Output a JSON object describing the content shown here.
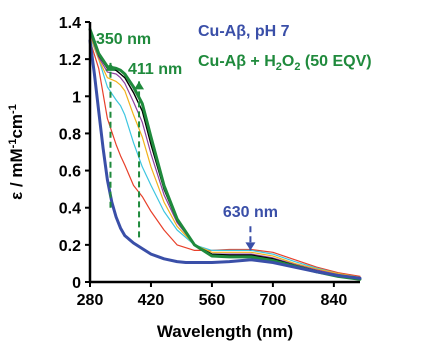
{
  "chart_data": {
    "type": "line",
    "xlabel": "Wavelength (nm)",
    "ylabel_main": "ε / mM",
    "ylabel_sup1": "-1",
    "ylabel_mid": "cm",
    "ylabel_sup2": "-1",
    "xlim": [
      280,
      900
    ],
    "ylim": [
      0,
      1.4
    ],
    "xticks": [
      "280",
      "420",
      "560",
      "700",
      "840"
    ],
    "yticks": [
      "0",
      "0.2",
      "0.4",
      "0.6",
      "0.8",
      "1",
      "1.2",
      "1.4"
    ],
    "legend": {
      "entry1": {
        "text": "Cu-Aβ, pH 7",
        "color": "#3a4fa8"
      },
      "entry2_a": "Cu-Aβ + H",
      "entry2_sub": "2",
      "entry2_b": "O",
      "entry2_sub2": "2",
      "entry2_c": " (50 EQV)",
      "entry2_color": "#1f8a3c"
    },
    "annotations": [
      {
        "text": "350 nm",
        "x": 350,
        "color": "#1f8a3c"
      },
      {
        "text": "411 nm",
        "x": 411,
        "color": "#1f8a3c"
      },
      {
        "text": "630 nm",
        "x": 630,
        "color": "#3a4fa8"
      }
    ],
    "series": [
      {
        "role": "initial",
        "color": "#3a4fa8",
        "width": 3,
        "x": [
          280,
          290,
          300,
          310,
          320,
          330,
          340,
          350,
          360,
          380,
          400,
          420,
          450,
          480,
          500,
          530,
          560,
          600,
          650,
          700,
          750,
          800,
          850,
          900
        ],
        "y": [
          1.3,
          1.12,
          0.92,
          0.72,
          0.55,
          0.43,
          0.35,
          0.29,
          0.25,
          0.21,
          0.18,
          0.15,
          0.125,
          0.11,
          0.105,
          0.105,
          0.105,
          0.11,
          0.12,
          0.105,
          0.08,
          0.055,
          0.035,
          0.02
        ]
      },
      {
        "role": "intermediate",
        "color": "#e8402a",
        "width": 1.2,
        "x": [
          280,
          300,
          320,
          340,
          350,
          360,
          380,
          400,
          420,
          450,
          480,
          520,
          560,
          600,
          650,
          700,
          750,
          800,
          850,
          900
        ],
        "y": [
          1.3,
          1.15,
          0.88,
          0.74,
          0.68,
          0.63,
          0.52,
          0.46,
          0.38,
          0.28,
          0.2,
          0.17,
          0.17,
          0.175,
          0.175,
          0.16,
          0.12,
          0.08,
          0.05,
          0.03
        ]
      },
      {
        "role": "intermediate",
        "color": "#3ec6e0",
        "width": 1.2,
        "x": [
          280,
          300,
          320,
          340,
          350,
          360,
          380,
          400,
          420,
          450,
          480,
          520,
          560,
          600,
          650,
          700,
          750,
          800,
          850,
          900
        ],
        "y": [
          1.32,
          1.2,
          1.05,
          0.98,
          0.95,
          0.9,
          0.75,
          0.62,
          0.52,
          0.38,
          0.28,
          0.2,
          0.17,
          0.17,
          0.17,
          0.15,
          0.11,
          0.075,
          0.045,
          0.025
        ]
      },
      {
        "role": "intermediate",
        "color": "#f2b21b",
        "width": 1.2,
        "x": [
          280,
          300,
          320,
          340,
          350,
          360,
          380,
          400,
          420,
          450,
          480,
          520,
          560,
          600,
          650,
          700,
          750,
          800,
          850,
          900
        ],
        "y": [
          1.33,
          1.2,
          1.1,
          1.08,
          1.06,
          1.03,
          0.9,
          0.78,
          0.62,
          0.43,
          0.3,
          0.2,
          0.16,
          0.16,
          0.16,
          0.14,
          0.1,
          0.07,
          0.045,
          0.025
        ]
      },
      {
        "role": "intermediate",
        "color": "#8e3f9e",
        "width": 1.2,
        "x": [
          280,
          300,
          320,
          340,
          350,
          360,
          380,
          400,
          420,
          450,
          480,
          520,
          560,
          600,
          650,
          700,
          750,
          800,
          850,
          900
        ],
        "y": [
          1.34,
          1.21,
          1.13,
          1.12,
          1.1,
          1.07,
          0.97,
          0.86,
          0.69,
          0.47,
          0.32,
          0.2,
          0.15,
          0.15,
          0.15,
          0.13,
          0.095,
          0.065,
          0.04,
          0.02
        ]
      },
      {
        "role": "intermediate",
        "color": "#000000",
        "width": 1.4,
        "x": [
          280,
          300,
          320,
          340,
          350,
          360,
          380,
          400,
          420,
          450,
          480,
          520,
          560,
          600,
          650,
          700,
          750,
          800,
          850,
          900
        ],
        "y": [
          1.35,
          1.22,
          1.15,
          1.14,
          1.12,
          1.1,
          1.02,
          0.92,
          0.74,
          0.5,
          0.33,
          0.2,
          0.15,
          0.145,
          0.145,
          0.125,
          0.09,
          0.06,
          0.035,
          0.02
        ]
      },
      {
        "role": "final",
        "color": "#1f8a3c",
        "width": 3,
        "x": [
          280,
          300,
          320,
          340,
          350,
          360,
          380,
          400,
          420,
          450,
          480,
          520,
          560,
          600,
          650,
          700,
          750,
          800,
          850,
          900
        ],
        "y": [
          1.36,
          1.23,
          1.16,
          1.15,
          1.14,
          1.12,
          1.05,
          0.96,
          0.78,
          0.52,
          0.34,
          0.2,
          0.14,
          0.135,
          0.135,
          0.115,
          0.085,
          0.055,
          0.03,
          0.015
        ]
      }
    ]
  }
}
